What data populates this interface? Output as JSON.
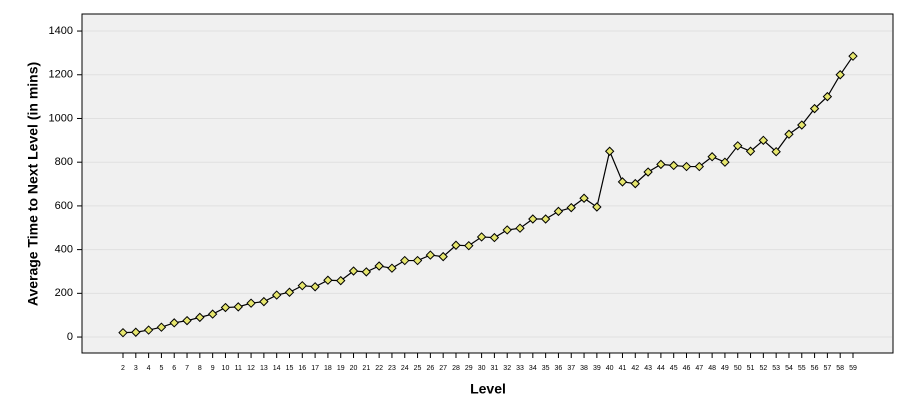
{
  "chart_data": {
    "type": "line",
    "x_label": "Level",
    "y_label": "Average Time to Next Level (in mins)",
    "categories": [
      "2",
      "3",
      "4",
      "5",
      "6",
      "7",
      "8",
      "9",
      "10",
      "11",
      "12",
      "13",
      "14",
      "15",
      "16",
      "17",
      "18",
      "19",
      "20",
      "21",
      "22",
      "23",
      "24",
      "25",
      "26",
      "27",
      "28",
      "29",
      "30",
      "31",
      "32",
      "33",
      "34",
      "35",
      "36",
      "37",
      "38",
      "39",
      "40",
      "41",
      "42",
      "43",
      "44",
      "45",
      "46",
      "47",
      "48",
      "49",
      "50",
      "51",
      "52",
      "53",
      "54",
      "55",
      "56",
      "57",
      "58",
      "59"
    ],
    "values": [
      20,
      22,
      32,
      45,
      65,
      75,
      90,
      105,
      135,
      138,
      155,
      162,
      192,
      205,
      235,
      230,
      260,
      258,
      302,
      298,
      325,
      315,
      350,
      350,
      375,
      368,
      420,
      418,
      458,
      455,
      490,
      498,
      540,
      540,
      575,
      592,
      635,
      595,
      850,
      710,
      702,
      755,
      790,
      785,
      780,
      780,
      825,
      800,
      875,
      850,
      900,
      848,
      928,
      970,
      1045,
      1100,
      1200,
      1285
    ],
    "color": "#e6e66e",
    "line_color": "#000000",
    "ylim": [
      -73,
      1478
    ],
    "yticks": [
      0,
      200,
      400,
      600,
      800,
      1000,
      1200,
      1400
    ],
    "grid": true
  }
}
